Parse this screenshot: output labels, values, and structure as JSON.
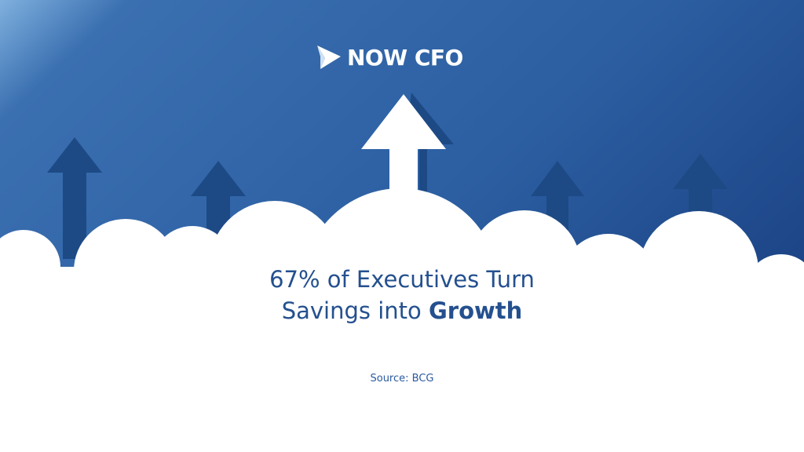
{
  "logo": {
    "text": "NOW CFO"
  },
  "headline": {
    "line1": "67% of Executives Turn",
    "line2_regular": "Savings into ",
    "line2_bold": "Growth"
  },
  "source": "Source: BCG",
  "colors": {
    "bg_light": "#7fb0de",
    "bg_mid": "#2f63a6",
    "bg_dark": "#1c4486",
    "arrow_dark": "#1d4a85",
    "text": "#24508f",
    "cloud": "#ffffff"
  }
}
